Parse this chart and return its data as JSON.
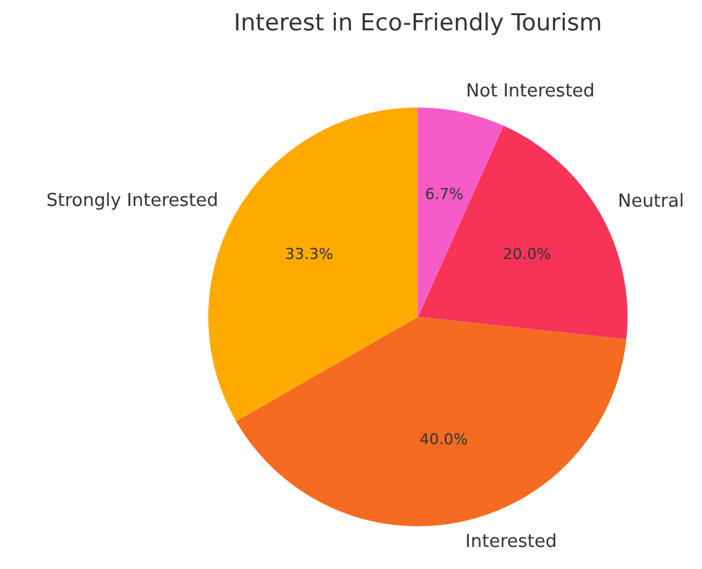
{
  "chart_data": {
    "type": "pie",
    "title": "Interest in Eco-Friendly Tourism",
    "categories": [
      "Strongly Interested",
      "Interested",
      "Neutral",
      "Not Interested"
    ],
    "values": [
      33.3,
      40,
      20,
      6.7
    ],
    "colors": [
      "#ffaa00",
      "#f46b21",
      "#f73358",
      "#f65cc8"
    ],
    "value_labels": [
      "33.3%",
      "40.0%",
      "20.0%",
      "6.7%"
    ]
  }
}
